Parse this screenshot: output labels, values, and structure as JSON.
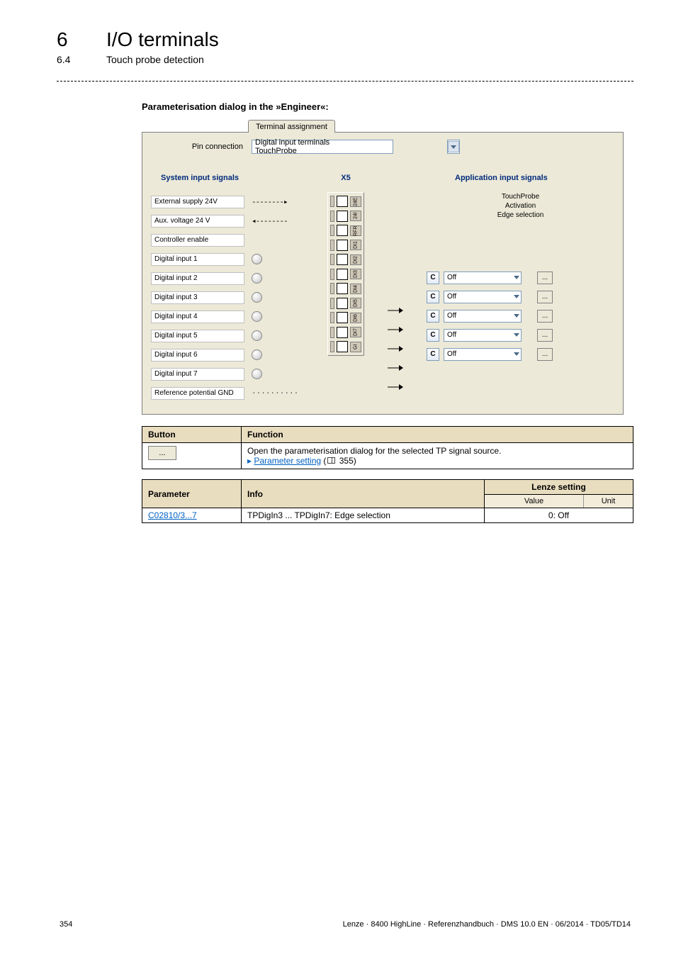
{
  "header": {
    "num": "6",
    "title": "I/O terminals",
    "subnum": "6.4",
    "subtitle": "Touch probe detection"
  },
  "section_caption": "Parameterisation dialog in the »Engineer«:",
  "dialog": {
    "tab_label": "Terminal assignment",
    "pin_label": "Pin connection",
    "pin_combo": "Digital input terminals TouchProbe",
    "blue_left": "System input signals",
    "blue_mid": "X5",
    "blue_right": "Application input signals",
    "tp_text": "TouchProbe\nActivation\nEdge selection",
    "sys_rows": [
      {
        "label": "External supply 24V",
        "indicator": "arrow_r"
      },
      {
        "label": "Aux. voltage 24 V",
        "indicator": "arrow_l"
      },
      {
        "label": "Controller enable",
        "indicator": null
      },
      {
        "label": "Digital input 1",
        "indicator": "led"
      },
      {
        "label": "Digital input 2",
        "indicator": "led"
      },
      {
        "label": "Digital input 3",
        "indicator": "led"
      },
      {
        "label": "Digital input 4",
        "indicator": "led"
      },
      {
        "label": "Digital input 5",
        "indicator": "led"
      },
      {
        "label": "Digital input 6",
        "indicator": "led"
      },
      {
        "label": "Digital input 7",
        "indicator": "led"
      },
      {
        "label": "Reference potential GND",
        "indicator": "dots"
      }
    ],
    "x5_labels": [
      "24E",
      "24I",
      "RFR",
      "DI1",
      "DI2",
      "DI3",
      "DI4",
      "DI5",
      "DI6",
      "DI7",
      "GI"
    ],
    "app_rows": [
      {
        "value": "Off"
      },
      {
        "value": "Off"
      },
      {
        "value": "Off"
      },
      {
        "value": "Off"
      },
      {
        "value": "Off"
      }
    ],
    "c_label": "C",
    "ddd_label": "..."
  },
  "table1": {
    "headers": [
      "Button",
      "Function"
    ],
    "btn_label": "...",
    "func_line1": "Open the parameterisation dialog for the selected TP signal source.",
    "func_link": "Parameter setting",
    "func_page": " 355)"
  },
  "table2": {
    "headers": [
      "Parameter",
      "Info",
      "Lenze setting"
    ],
    "sub_headers": [
      "Value",
      "Unit"
    ],
    "row": {
      "param": "C02810/3...7",
      "info": "TPDigIn3 ... TPDigIn7: Edge selection",
      "value": "0: Off"
    }
  },
  "footer": {
    "page": "354",
    "text": "Lenze · 8400 HighLine · Referenzhandbuch · DMS 10.0 EN · 06/2014 · TD05/TD14"
  },
  "colors": {
    "panel_bg": "#ece9d8",
    "th_bg": "#e9ddc0",
    "blue_text": "#002a7b",
    "link": "#0060c0"
  }
}
